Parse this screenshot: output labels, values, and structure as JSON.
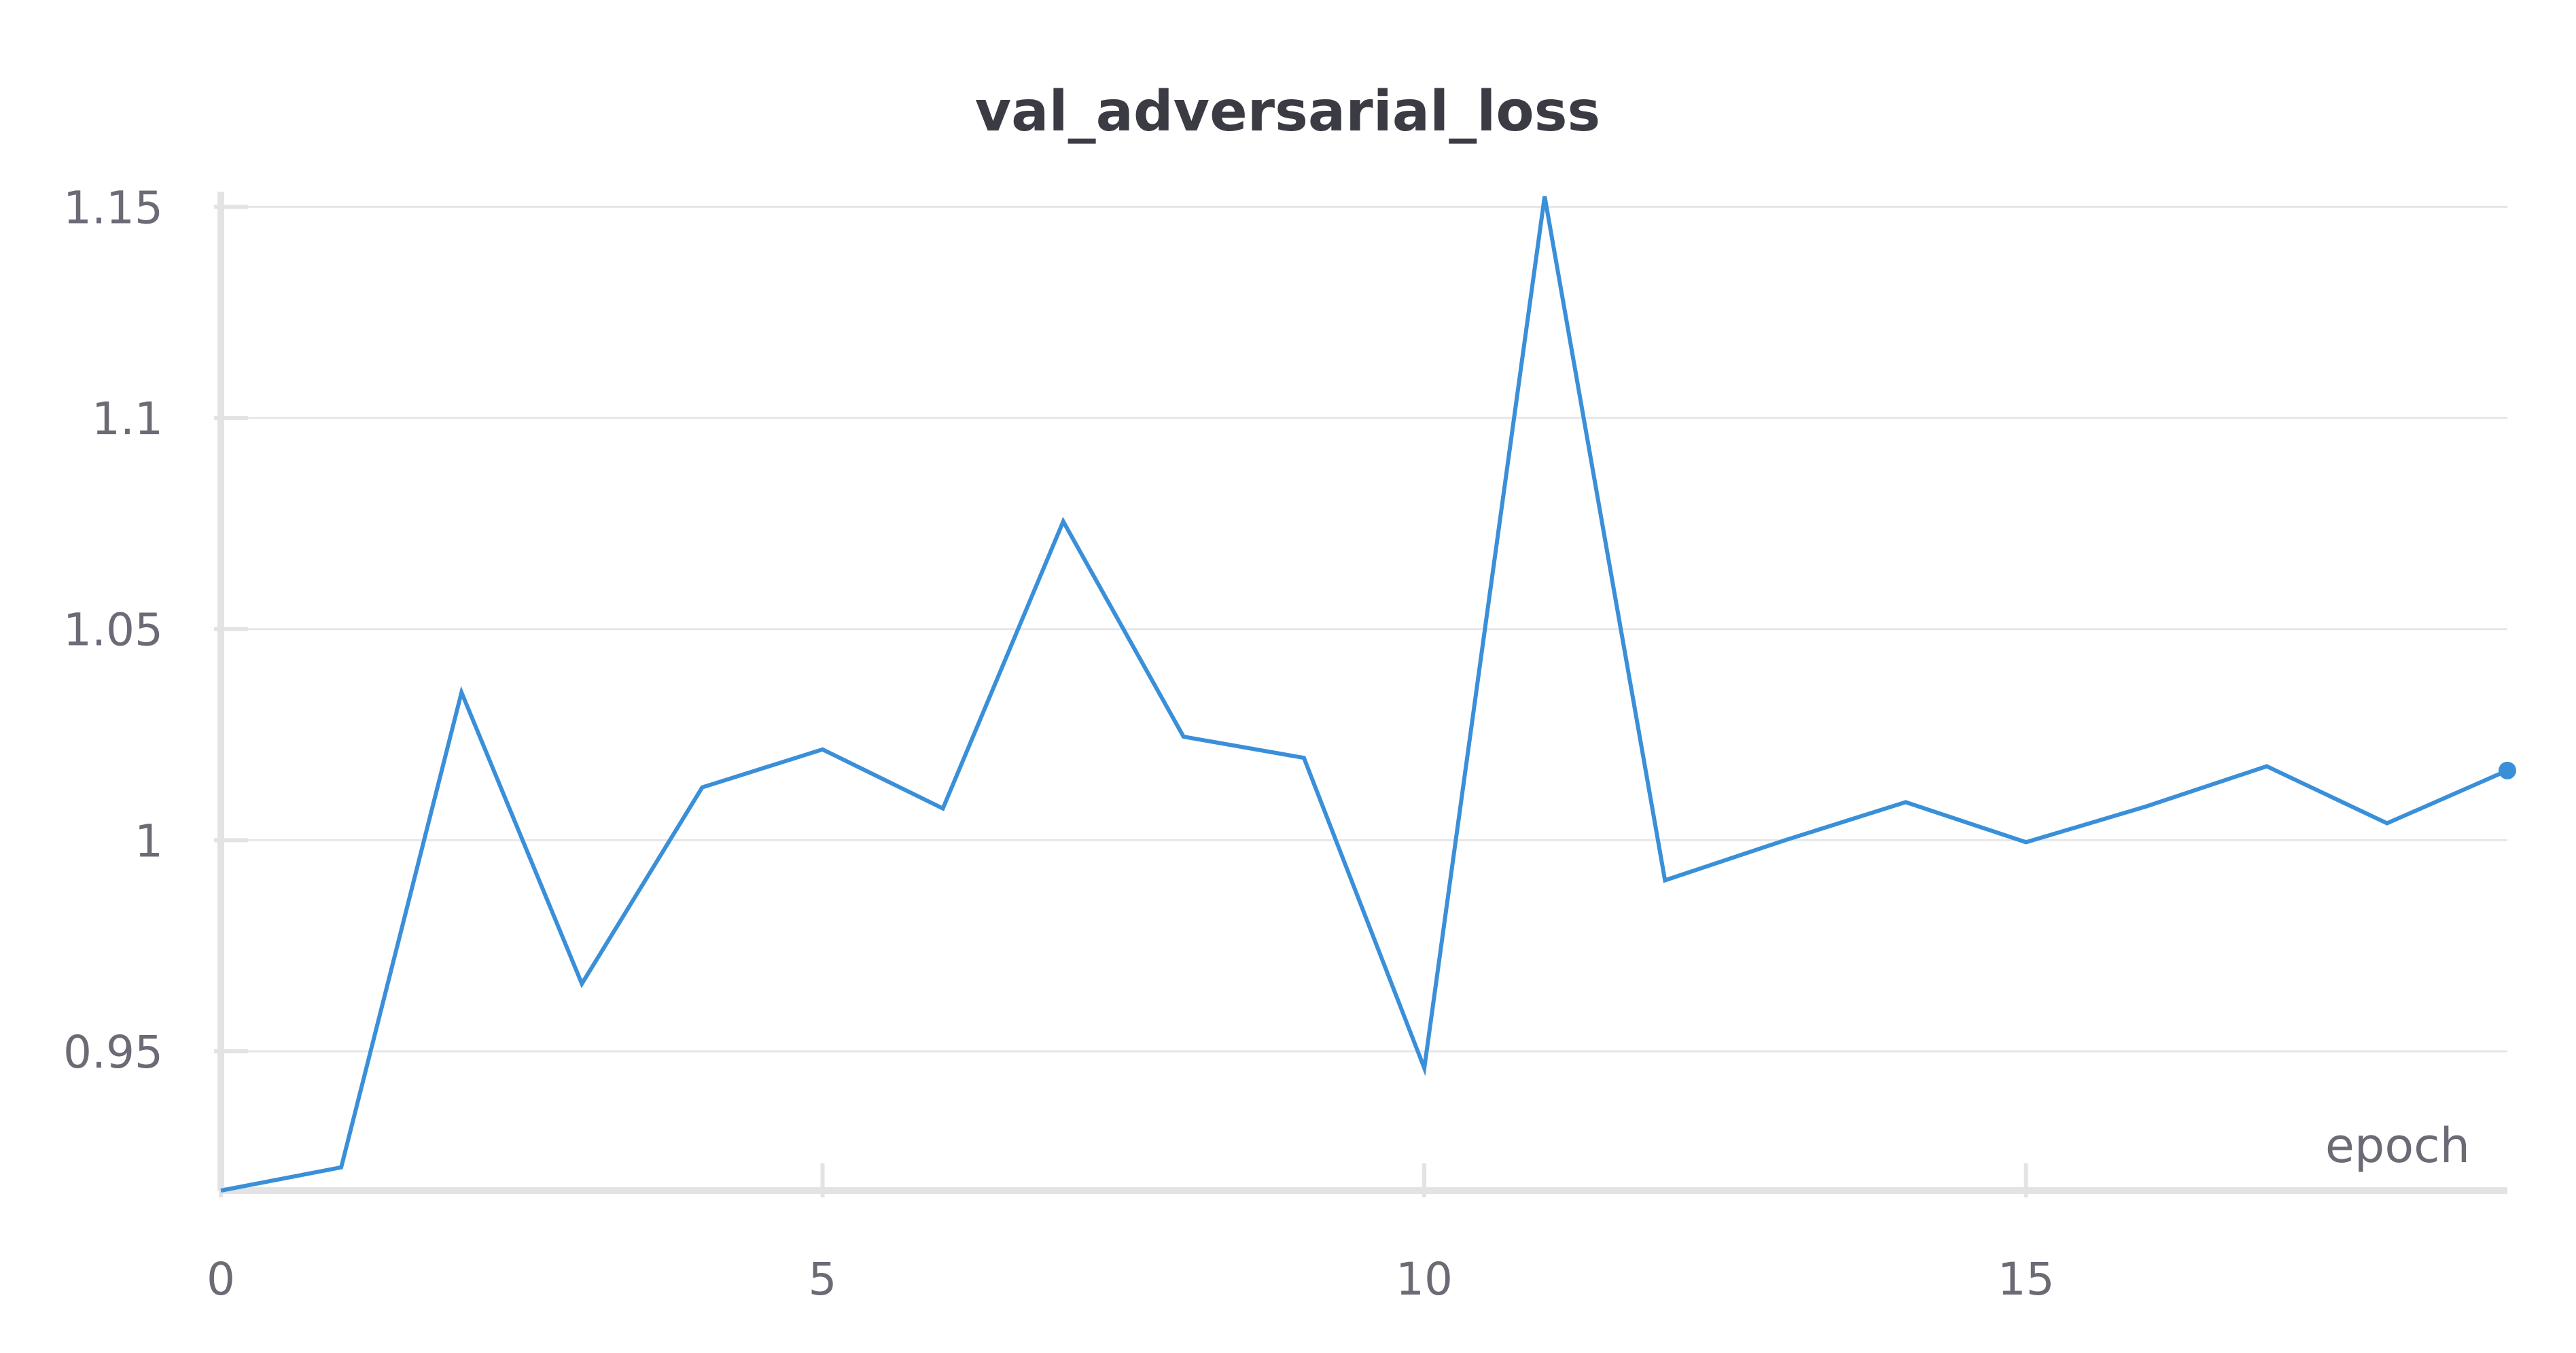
{
  "chart_data": {
    "type": "line",
    "title": "val_adversarial_loss",
    "xlabel": "epoch",
    "ylabel": "",
    "xlim": [
      0,
      19
    ],
    "ylim": [
      0.917,
      1.152
    ],
    "x_ticks": [
      0,
      5,
      10,
      15
    ],
    "y_ticks": [
      0.95,
      1,
      1.05,
      1.1,
      1.15
    ],
    "x_tick_labels": [
      "0",
      "5",
      "10",
      "15"
    ],
    "y_tick_labels": [
      "0.95",
      "1",
      "1.05",
      "1.1",
      "1.15"
    ],
    "grid": "horizontal",
    "legend": "none",
    "series": [
      {
        "color": "#3a8fd9",
        "x": [
          0,
          1,
          2,
          3,
          4,
          5,
          6,
          7,
          8,
          9,
          10,
          11,
          12,
          13,
          14,
          15,
          16,
          17,
          18,
          19
        ],
        "values": [
          0.917,
          0.9225,
          1.035,
          0.966,
          1.0125,
          1.0215,
          1.0075,
          1.0755,
          1.0245,
          1.0195,
          0.946,
          1.1525,
          0.9905,
          1.0,
          1.009,
          0.9995,
          1.008,
          1.0175,
          1.004,
          1.0165
        ]
      }
    ],
    "colors": {
      "line": "#3a8fd9",
      "grid": "#e6e6e9",
      "axis": "#e3e3e6",
      "text": "#6b6b76",
      "title": "#3b3b44"
    }
  }
}
